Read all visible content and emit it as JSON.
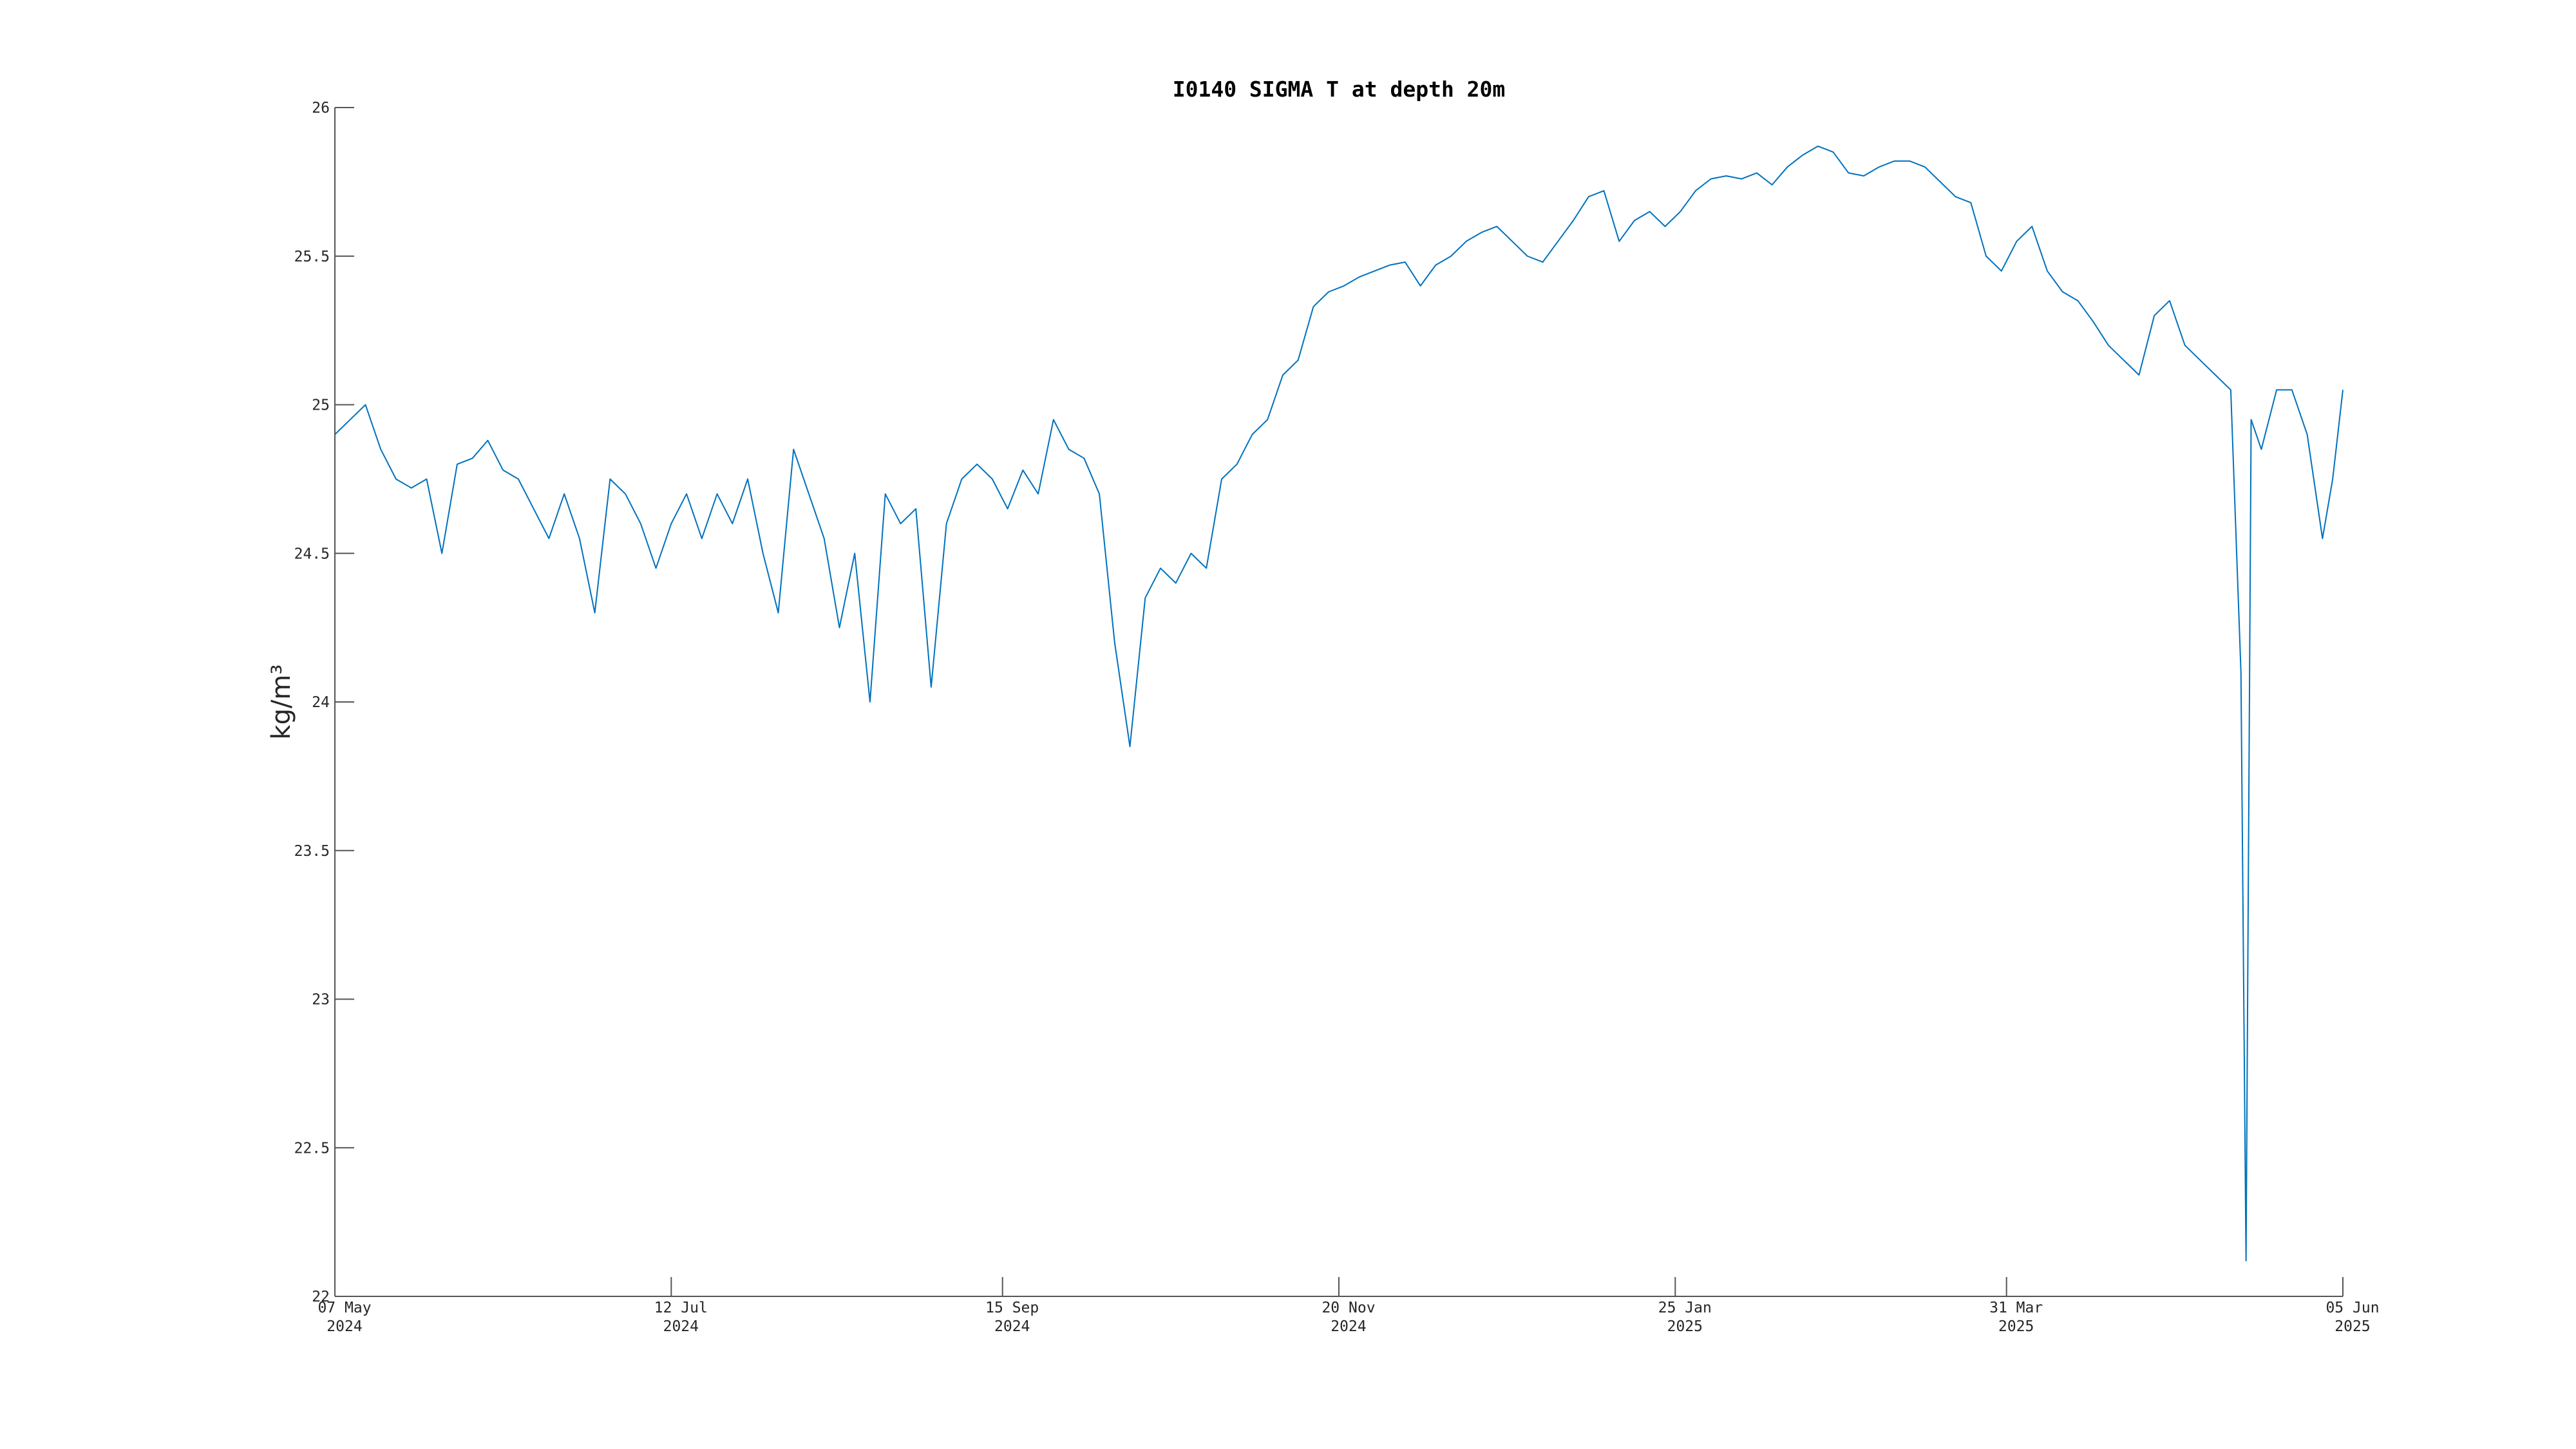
{
  "chart_data": {
    "type": "line",
    "title": "I0140 SIGMA T at depth 20m",
    "y_label": "kg/m³",
    "x": [
      "2024-05-07",
      "2024-05-10",
      "2024-05-13",
      "2024-05-16",
      "2024-05-19",
      "2024-05-22",
      "2024-05-25",
      "2024-05-28",
      "2024-05-31",
      "2024-06-03",
      "2024-06-06",
      "2024-06-09",
      "2024-06-12",
      "2024-06-15",
      "2024-06-18",
      "2024-06-21",
      "2024-06-24",
      "2024-06-27",
      "2024-06-30",
      "2024-07-03",
      "2024-07-06",
      "2024-07-09",
      "2024-07-12",
      "2024-07-15",
      "2024-07-18",
      "2024-07-21",
      "2024-07-24",
      "2024-07-27",
      "2024-07-30",
      "2024-08-02",
      "2024-08-05",
      "2024-08-08",
      "2024-08-11",
      "2024-08-14",
      "2024-08-17",
      "2024-08-20",
      "2024-08-23",
      "2024-08-26",
      "2024-08-29",
      "2024-09-01",
      "2024-09-04",
      "2024-09-07",
      "2024-09-10",
      "2024-09-13",
      "2024-09-16",
      "2024-09-19",
      "2024-09-22",
      "2024-09-25",
      "2024-09-28",
      "2024-10-01",
      "2024-10-04",
      "2024-10-07",
      "2024-10-10",
      "2024-10-13",
      "2024-10-16",
      "2024-10-19",
      "2024-10-22",
      "2024-10-25",
      "2024-10-28",
      "2024-10-31",
      "2024-11-03",
      "2024-11-06",
      "2024-11-09",
      "2024-11-12",
      "2024-11-15",
      "2024-11-18",
      "2024-11-21",
      "2024-11-24",
      "2024-11-27",
      "2024-11-30",
      "2024-12-03",
      "2024-12-06",
      "2024-12-09",
      "2024-12-12",
      "2024-12-15",
      "2024-12-18",
      "2024-12-21",
      "2024-12-24",
      "2024-12-27",
      "2024-12-30",
      "2025-01-02",
      "2025-01-05",
      "2025-01-08",
      "2025-01-11",
      "2025-01-14",
      "2025-01-17",
      "2025-01-20",
      "2025-01-23",
      "2025-01-26",
      "2025-01-29",
      "2025-02-01",
      "2025-02-04",
      "2025-02-07",
      "2025-02-10",
      "2025-02-13",
      "2025-02-16",
      "2025-02-19",
      "2025-02-22",
      "2025-02-25",
      "2025-02-28",
      "2025-03-03",
      "2025-03-06",
      "2025-03-09",
      "2025-03-12",
      "2025-03-15",
      "2025-03-18",
      "2025-03-21",
      "2025-03-24",
      "2025-03-27",
      "2025-03-30",
      "2025-04-02",
      "2025-04-05",
      "2025-04-08",
      "2025-04-11",
      "2025-04-14",
      "2025-04-17",
      "2025-04-20",
      "2025-04-23",
      "2025-04-26",
      "2025-04-29",
      "2025-05-02",
      "2025-05-05",
      "2025-05-08",
      "2025-05-11",
      "2025-05-14",
      "2025-05-16",
      "2025-05-17",
      "2025-05-18",
      "2025-05-20",
      "2025-05-23",
      "2025-05-26",
      "2025-05-29",
      "2025-06-01",
      "2025-06-03",
      "2025-06-05"
    ],
    "series": [
      {
        "name": "SIGMA T",
        "color": "#0072bd",
        "values": [
          24.9,
          24.95,
          25.0,
          24.85,
          24.75,
          24.72,
          24.75,
          24.5,
          24.8,
          24.82,
          24.88,
          24.78,
          24.75,
          24.65,
          24.55,
          24.7,
          24.55,
          24.3,
          24.75,
          24.7,
          24.6,
          24.45,
          24.6,
          24.7,
          24.55,
          24.7,
          24.6,
          24.75,
          24.5,
          24.3,
          24.85,
          24.7,
          24.55,
          24.25,
          24.5,
          24.0,
          24.7,
          24.6,
          24.65,
          24.05,
          24.6,
          24.75,
          24.8,
          24.75,
          24.65,
          24.78,
          24.7,
          24.95,
          24.85,
          24.82,
          24.7,
          24.2,
          23.85,
          24.35,
          24.45,
          24.4,
          24.5,
          24.45,
          24.75,
          24.8,
          24.9,
          24.95,
          25.1,
          25.15,
          25.33,
          25.38,
          25.4,
          25.43,
          25.45,
          25.47,
          25.48,
          25.4,
          25.47,
          25.5,
          25.55,
          25.58,
          25.6,
          25.55,
          25.5,
          25.48,
          25.55,
          25.62,
          25.7,
          25.72,
          25.55,
          25.62,
          25.65,
          25.6,
          25.65,
          25.72,
          25.76,
          25.77,
          25.76,
          25.78,
          25.74,
          25.8,
          25.84,
          25.87,
          25.85,
          25.78,
          25.77,
          25.8,
          25.82,
          25.82,
          25.8,
          25.75,
          25.7,
          25.68,
          25.5,
          25.45,
          25.55,
          25.6,
          25.45,
          25.38,
          25.35,
          25.28,
          25.2,
          25.15,
          25.1,
          25.3,
          25.35,
          25.2,
          25.15,
          25.1,
          25.05,
          24.1,
          22.12,
          24.95,
          24.85,
          25.05,
          25.05,
          24.9,
          24.55,
          24.75,
          25.05
        ]
      }
    ],
    "xlim": [
      "2024-05-07",
      "2025-06-05"
    ],
    "xticks": [
      {
        "value": "2024-05-07",
        "label": [
          "07 May",
          "2024"
        ]
      },
      {
        "value": "2024-07-12",
        "label": [
          "12 Jul",
          "2024"
        ]
      },
      {
        "value": "2024-09-15",
        "label": [
          "15 Sep",
          "2024"
        ]
      },
      {
        "value": "2024-11-20",
        "label": [
          "20 Nov",
          "2024"
        ]
      },
      {
        "value": "2025-01-25",
        "label": [
          "25 Jan",
          "2025"
        ]
      },
      {
        "value": "2025-03-31",
        "label": [
          "31 Mar",
          "2025"
        ]
      },
      {
        "value": "2025-06-05",
        "label": [
          "05 Jun",
          "2025"
        ]
      }
    ],
    "ylim": [
      22,
      26
    ],
    "yticks": [
      22,
      22.5,
      23,
      23.5,
      24,
      24.5,
      25,
      25.5,
      26
    ],
    "grid": false
  }
}
